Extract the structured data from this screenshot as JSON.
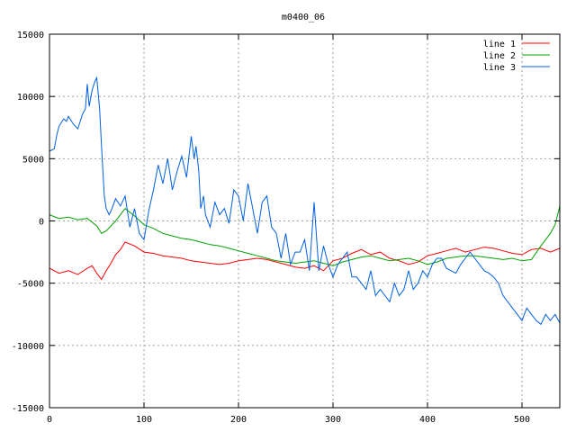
{
  "chart_data": {
    "type": "line",
    "title": "m0400_06",
    "xlabel": "",
    "ylabel": "",
    "xlim": [
      0,
      540
    ],
    "ylim": [
      -15000,
      15000
    ],
    "xticks": [
      0,
      100,
      200,
      300,
      400,
      500
    ],
    "yticks": [
      -15000,
      -10000,
      -5000,
      0,
      5000,
      10000,
      15000
    ],
    "grid": true,
    "legend_position": "top-right",
    "series": [
      {
        "name": "line 1",
        "color": "#ff0000",
        "x": [
          0,
          10,
          20,
          30,
          40,
          45,
          50,
          55,
          60,
          65,
          70,
          75,
          80,
          90,
          100,
          110,
          120,
          130,
          140,
          150,
          160,
          170,
          180,
          190,
          200,
          210,
          220,
          230,
          240,
          250,
          260,
          270,
          280,
          290,
          300,
          310,
          320,
          330,
          340,
          350,
          360,
          370,
          380,
          390,
          400,
          410,
          420,
          430,
          440,
          450,
          460,
          470,
          480,
          490,
          500,
          510,
          520,
          530,
          540
        ],
        "values": [
          -3800,
          -4200,
          -4000,
          -4300,
          -3800,
          -3600,
          -4200,
          -4700,
          -4000,
          -3400,
          -2700,
          -2300,
          -1700,
          -2000,
          -2500,
          -2600,
          -2800,
          -2900,
          -3000,
          -3200,
          -3300,
          -3400,
          -3500,
          -3400,
          -3200,
          -3100,
          -3000,
          -3100,
          -3300,
          -3500,
          -3700,
          -3800,
          -3600,
          -4000,
          -3200,
          -3000,
          -2600,
          -2300,
          -2700,
          -2500,
          -3000,
          -3200,
          -3500,
          -3300,
          -2800,
          -2600,
          -2400,
          -2200,
          -2500,
          -2300,
          -2100,
          -2200,
          -2400,
          -2600,
          -2700,
          -2300,
          -2200,
          -2500,
          -2200
        ]
      },
      {
        "name": "line 2",
        "color": "#00a000",
        "x": [
          0,
          10,
          20,
          30,
          40,
          50,
          55,
          60,
          70,
          80,
          90,
          100,
          110,
          120,
          130,
          140,
          150,
          160,
          170,
          180,
          190,
          200,
          210,
          220,
          230,
          240,
          250,
          260,
          270,
          280,
          290,
          300,
          310,
          320,
          330,
          340,
          350,
          360,
          370,
          380,
          390,
          400,
          410,
          420,
          430,
          440,
          450,
          460,
          470,
          480,
          490,
          500,
          510,
          520,
          525,
          530,
          535,
          540
        ],
        "values": [
          500,
          200,
          300,
          100,
          200,
          -400,
          -1000,
          -800,
          0,
          1000,
          400,
          -300,
          -600,
          -1000,
          -1200,
          -1400,
          -1500,
          -1700,
          -1900,
          -2000,
          -2200,
          -2400,
          -2600,
          -2800,
          -3000,
          -3200,
          -3300,
          -3400,
          -3300,
          -3200,
          -3400,
          -3600,
          -3300,
          -3100,
          -2900,
          -2800,
          -3000,
          -3200,
          -3100,
          -3000,
          -3200,
          -3500,
          -3300,
          -3000,
          -2900,
          -2800,
          -2800,
          -2900,
          -3000,
          -3100,
          -3000,
          -3200,
          -3100,
          -2000,
          -1500,
          -1000,
          -300,
          1200
        ]
      },
      {
        "name": "line 3",
        "color": "#0060e0",
        "x": [
          0,
          5,
          8,
          10,
          15,
          18,
          20,
          25,
          30,
          35,
          38,
          40,
          42,
          45,
          48,
          50,
          53,
          55,
          58,
          60,
          63,
          65,
          70,
          75,
          80,
          85,
          90,
          95,
          100,
          105,
          110,
          115,
          120,
          125,
          130,
          135,
          140,
          145,
          150,
          153,
          155,
          158,
          160,
          163,
          165,
          170,
          175,
          180,
          185,
          190,
          195,
          200,
          205,
          210,
          215,
          220,
          225,
          230,
          235,
          240,
          245,
          250,
          255,
          260,
          265,
          270,
          275,
          280,
          285,
          290,
          295,
          300,
          305,
          310,
          315,
          320,
          325,
          330,
          335,
          340,
          345,
          350,
          355,
          360,
          365,
          370,
          375,
          380,
          385,
          390,
          395,
          400,
          405,
          410,
          415,
          420,
          425,
          430,
          435,
          440,
          445,
          450,
          455,
          460,
          465,
          470,
          475,
          480,
          485,
          490,
          495,
          500,
          505,
          510,
          515,
          520,
          525,
          530,
          535,
          540
        ],
        "values": [
          5600,
          5800,
          7000,
          7600,
          8200,
          8000,
          8400,
          7800,
          7400,
          8600,
          9000,
          11000,
          9200,
          10500,
          11200,
          11500,
          9000,
          6000,
          2000,
          1000,
          500,
          800,
          1800,
          1200,
          2000,
          -500,
          1000,
          -1000,
          -1500,
          800,
          2500,
          4500,
          3000,
          5000,
          2500,
          4000,
          5200,
          3500,
          6800,
          5000,
          6000,
          4000,
          1000,
          2000,
          500,
          -500,
          1500,
          500,
          1000,
          -200,
          2500,
          2000,
          0,
          3000,
          1000,
          -1000,
          1500,
          2000,
          -500,
          -1000,
          -3000,
          -1000,
          -3500,
          -2500,
          -2500,
          -1500,
          -4000,
          1500,
          -4000,
          -2000,
          -3500,
          -4500,
          -3500,
          -3000,
          -2500,
          -4500,
          -4500,
          -5000,
          -5500,
          -4000,
          -6000,
          -5500,
          -6000,
          -6500,
          -5000,
          -6000,
          -5500,
          -4000,
          -5500,
          -5000,
          -4000,
          -4500,
          -3500,
          -3000,
          -3000,
          -3800,
          -4000,
          -4200,
          -3500,
          -3000,
          -2500,
          -3000,
          -3500,
          -4000,
          -4200,
          -4500,
          -5000,
          -6000,
          -6500,
          -7000,
          -7500,
          -8000,
          -7000,
          -7500,
          -8000,
          -8300,
          -7500,
          -8000,
          -7500,
          -8200
        ]
      }
    ]
  }
}
